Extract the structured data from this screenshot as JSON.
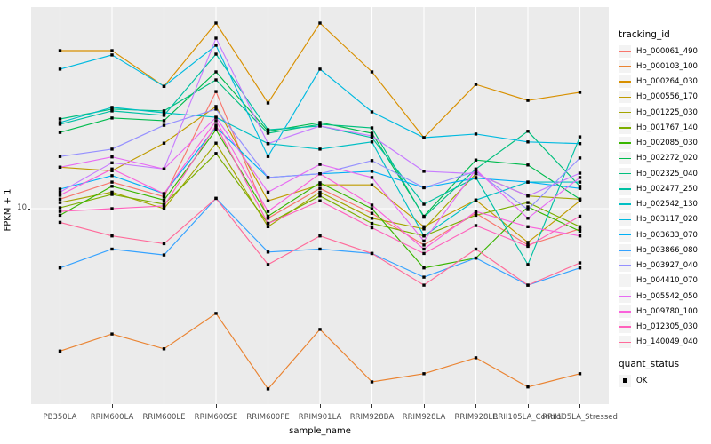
{
  "chart_data": {
    "type": "line",
    "title": "",
    "xlabel": "sample_name",
    "ylabel": "FPKM + 1",
    "yscale": "log10",
    "ylim": [
      1.16,
      92
    ],
    "ytick": {
      "label": "10",
      "value": 10
    },
    "grid": true,
    "panel_bg": "#EBEBEB",
    "grid_color": "#FFFFFF",
    "marker_color": "#000000",
    "legend_position": "right",
    "legend_title": "tracking_id",
    "quant_legend": {
      "title": "quant_status",
      "items": [
        {
          "label": "OK",
          "marker": "black-square"
        }
      ]
    },
    "categories": [
      "PB350LA",
      "RRIM600LA",
      "RRIM600LE",
      "RRIM600SE",
      "RRIM600PE",
      "RRIM901LA",
      "RRIM928BA",
      "RRIM928LA",
      "RRIM928LE",
      "RRII105LA_Control",
      "RRII105LA_Stressed"
    ],
    "series": [
      {
        "name": "Hb_000061_490",
        "color": "#F8766D",
        "values": [
          11.1,
          13.4,
          11.4,
          36.4,
          9.0,
          12.5,
          9.5,
          6.7,
          9.5,
          6.7,
          8.0
        ]
      },
      {
        "name": "Hb_000103_100",
        "color": "#EA8331",
        "values": [
          2.08,
          2.51,
          2.13,
          3.15,
          1.37,
          2.64,
          1.48,
          1.62,
          1.93,
          1.4,
          1.62
        ]
      },
      {
        "name": "Hb_000264_030",
        "color": "#D89000",
        "values": [
          57.2,
          57.2,
          38.6,
          77.5,
          32.1,
          77.5,
          45.2,
          21.9,
          39.4,
          33.0,
          36.1
        ]
      },
      {
        "name": "Hb_000556_170",
        "color": "#C09B00",
        "values": [
          15.8,
          15.2,
          20.6,
          30.9,
          10.9,
          13.0,
          13.0,
          8.2,
          11.0,
          6.9,
          10.9
        ]
      },
      {
        "name": "Hb_001225_030",
        "color": "#A3A500",
        "values": [
          10.7,
          12.0,
          10.0,
          20.6,
          8.2,
          12.0,
          9.0,
          8.0,
          14.7,
          11.5,
          11.1
        ]
      },
      {
        "name": "Hb_001767_140",
        "color": "#7CAE00",
        "values": [
          10.1,
          11.7,
          10.5,
          18.4,
          8.5,
          11.5,
          8.5,
          7.4,
          9.3,
          10.7,
          8.2
        ]
      },
      {
        "name": "Hb_002085_030",
        "color": "#39B600",
        "values": [
          9.3,
          12.8,
          11.0,
          23.9,
          9.2,
          13.3,
          10.0,
          5.2,
          5.8,
          10.2,
          7.8
        ]
      },
      {
        "name": "Hb_002272_020",
        "color": "#00BB4E",
        "values": [
          23.2,
          27.2,
          26.4,
          45.2,
          23.5,
          25.9,
          23.0,
          9.2,
          17.1,
          16.2,
          11.1
        ]
      },
      {
        "name": "Hb_002325_040",
        "color": "#00BF7D",
        "values": [
          26.9,
          30.0,
          29.4,
          41.4,
          23.0,
          25.4,
          24.4,
          9.1,
          15.5,
          23.5,
          12.8
        ]
      },
      {
        "name": "Hb_002477_250",
        "color": "#00C1A3",
        "values": [
          25.4,
          29.4,
          28.0,
          55.0,
          23.9,
          24.9,
          21.9,
          10.5,
          14.1,
          5.4,
          22.1
        ]
      },
      {
        "name": "Hb_002542_130",
        "color": "#00BFC4",
        "values": [
          25.9,
          30.6,
          28.8,
          27.4,
          20.5,
          19.3,
          20.9,
          7.4,
          11.0,
          13.4,
          13.4
        ]
      },
      {
        "name": "Hb_003117_020",
        "color": "#00BAE0",
        "values": [
          46.6,
          54.5,
          38.6,
          60.7,
          17.8,
          46.6,
          29.1,
          21.9,
          22.8,
          20.9,
          20.5
        ]
      },
      {
        "name": "Hb_003633_070",
        "color": "#00B0F6",
        "values": [
          12.4,
          14.4,
          11.8,
          24.6,
          14.1,
          14.7,
          15.1,
          12.6,
          14.0,
          13.4,
          12.5
        ]
      },
      {
        "name": "Hb_003866_080",
        "color": "#35A2FF",
        "values": [
          5.2,
          6.4,
          6.0,
          11.2,
          6.2,
          6.4,
          6.1,
          4.7,
          5.8,
          4.3,
          5.2
        ]
      },
      {
        "name": "Hb_003927_040",
        "color": "#9590FF",
        "values": [
          17.8,
          19.3,
          25.1,
          30.0,
          14.1,
          14.7,
          17.0,
          12.6,
          15.1,
          9.9,
          17.5
        ]
      },
      {
        "name": "Hb_004410_070",
        "color": "#C77CFF",
        "values": [
          12.0,
          16.6,
          15.5,
          65.6,
          20.5,
          24.9,
          22.3,
          15.1,
          14.7,
          11.5,
          14.8
        ]
      },
      {
        "name": "Hb_005542_050",
        "color": "#E76BF3",
        "values": [
          15.8,
          17.7,
          15.5,
          27.4,
          12.0,
          16.3,
          14.1,
          7.0,
          15.4,
          9.0,
          14.1
        ]
      },
      {
        "name": "Hb_009780_100",
        "color": "#FA62DB",
        "values": [
          11.6,
          15.5,
          11.8,
          26.4,
          9.7,
          14.7,
          10.4,
          6.4,
          9.7,
          8.2,
          7.4
        ]
      },
      {
        "name": "Hb_012305_030",
        "color": "#FF62BC",
        "values": [
          9.7,
          10.0,
          10.3,
          25.1,
          8.5,
          10.9,
          8.1,
          6.1,
          8.3,
          6.6,
          9.2
        ]
      },
      {
        "name": "Hb_140049_040",
        "color": "#FF6A9A",
        "values": [
          8.6,
          7.4,
          6.8,
          11.2,
          5.4,
          7.4,
          6.1,
          4.3,
          6.4,
          4.3,
          5.5
        ]
      }
    ]
  }
}
